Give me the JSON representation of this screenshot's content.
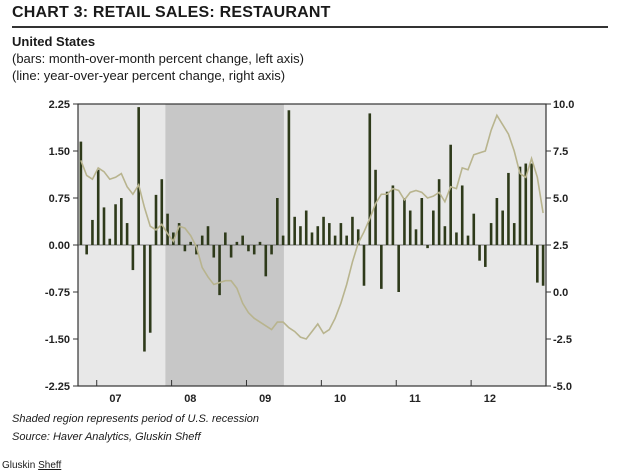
{
  "header": {
    "title": "CHART 3: RETAIL SALES: RESTAURANT",
    "subtitle": "United States",
    "legend_bars": "(bars: month-over-month percent change, left axis)",
    "legend_line": "(line: year-over-year percent change, right axis)"
  },
  "footer": {
    "note": "Shaded region represents period of U.S. recession",
    "source": "Source: Haver Analytics, Gluskin Sheff",
    "brand_a": "Gluskin ",
    "brand_b": "Sheff"
  },
  "colors": {
    "bars": "#2e3a1a",
    "line": "#b8b48e",
    "plot_bg": "#e8e8e8",
    "recession": "#c7c7c7"
  },
  "chart_data": {
    "type": "bar",
    "title": "CHART 3: RETAIL SALES: RESTAURANT",
    "x_start": 2006.75,
    "x_end": 2013.0,
    "recession": [
      2007.917,
      2009.5
    ],
    "xticks": [
      {
        "label": "07",
        "x": 2007.25
      },
      {
        "label": "08",
        "x": 2008.25
      },
      {
        "label": "09",
        "x": 2009.25
      },
      {
        "label": "10",
        "x": 2010.25
      },
      {
        "label": "11",
        "x": 2011.25
      },
      {
        "label": "12",
        "x": 2012.25
      }
    ],
    "left_axis": {
      "ylim": [
        -2.25,
        2.25
      ],
      "ticks": [
        "2.25",
        "1.50",
        "0.75",
        "0.00",
        "-0.75",
        "-1.50",
        "-2.25"
      ],
      "tick_values": [
        2.25,
        1.5,
        0.75,
        0,
        -0.75,
        -1.5,
        -2.25
      ]
    },
    "right_axis": {
      "ylim": [
        -5.0,
        10.0
      ],
      "ticks": [
        "10.0",
        "7.5",
        "5.0",
        "2.5",
        "0.0",
        "-2.5",
        "-5.0"
      ],
      "tick_values": [
        10,
        7.5,
        5,
        2.5,
        0,
        -2.5,
        -5
      ]
    },
    "series": [
      {
        "name": "month-over-month percent change",
        "axis": "left",
        "type": "bar",
        "values": [
          1.65,
          -0.15,
          0.4,
          1.2,
          0.6,
          0.1,
          0.65,
          0.75,
          0.35,
          -0.4,
          2.2,
          -1.7,
          -1.4,
          0.8,
          1.05,
          0.5,
          0.2,
          0.35,
          -0.1,
          0.05,
          -0.15,
          0.15,
          0.3,
          -0.2,
          -0.8,
          0.2,
          -0.2,
          0.05,
          0.15,
          -0.1,
          -0.15,
          0.05,
          -0.5,
          -0.15,
          0.75,
          0.15,
          2.15,
          0.45,
          0.3,
          0.55,
          0.2,
          0.3,
          0.45,
          0.35,
          0.15,
          0.35,
          0.15,
          0.45,
          0.25,
          -0.65,
          2.1,
          1.2,
          -0.7,
          0.85,
          0.95,
          -0.75,
          0.75,
          0.55,
          0.25,
          0.75,
          -0.05,
          0.55,
          1.05,
          0.3,
          1.6,
          0.2,
          0.95,
          0.15,
          0.5,
          -0.25,
          -0.35,
          0.35,
          0.75,
          0.55,
          1.15,
          0.35,
          1.25,
          1.3,
          1.3,
          -0.6,
          -0.65
        ]
      },
      {
        "name": "year-over-year percent change",
        "axis": "right",
        "type": "line",
        "values": [
          7.0,
          6.2,
          6.0,
          6.6,
          6.4,
          6.0,
          6.1,
          6.3,
          5.6,
          5.2,
          5.7,
          4.5,
          3.5,
          3.3,
          3.6,
          3.1,
          2.7,
          3.5,
          3.4,
          3.0,
          2.4,
          1.3,
          0.8,
          0.4,
          0.5,
          0.6,
          0.6,
          0.2,
          -0.6,
          -1.1,
          -1.4,
          -1.6,
          -1.8,
          -2.0,
          -1.6,
          -1.6,
          -1.9,
          -2.1,
          -2.4,
          -2.5,
          -2.1,
          -1.7,
          -2.2,
          -2.0,
          -1.4,
          -0.6,
          0.4,
          1.6,
          2.6,
          3.2,
          3.9,
          4.7,
          5.2,
          5.2,
          5.5,
          5.4,
          4.9,
          5.3,
          5.4,
          5.3,
          5.0,
          5.1,
          5.3,
          4.8,
          5.6,
          5.5,
          6.6,
          6.5,
          7.3,
          7.4,
          7.5,
          8.6,
          9.4,
          8.9,
          8.4,
          7.5,
          6.3,
          6.1,
          7.1,
          6.1,
          4.2
        ]
      }
    ]
  }
}
